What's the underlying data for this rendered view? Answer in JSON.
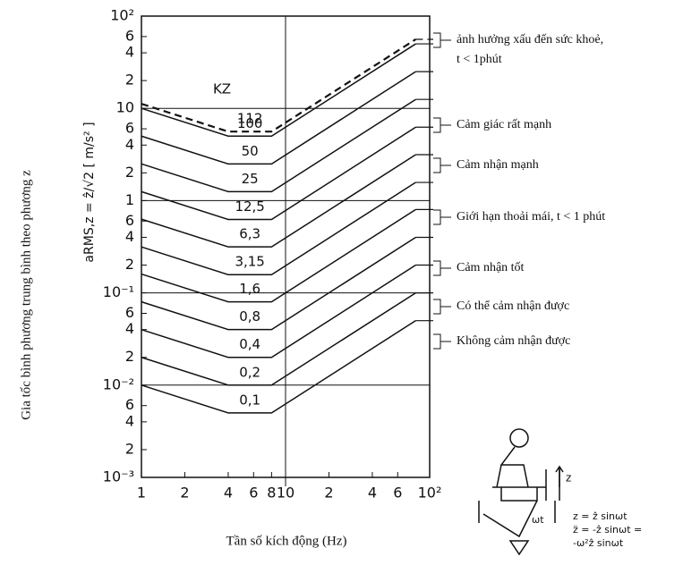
{
  "chart_data": {
    "type": "line",
    "log_x": true,
    "log_y": true,
    "y_title": "Gia tốc bình phương trung bình theo phương z",
    "y_label": "aRMS,z = ẑ/√2  [ m/s² ]",
    "x_label": "Tần số kích động (Hz)",
    "legend_title": "KZ",
    "xlim": [
      1,
      100
    ],
    "ylim": [
      0.001,
      100
    ],
    "xticks": [
      1,
      2,
      4,
      6,
      8,
      10,
      {
        "value": 20,
        "label": "2"
      },
      {
        "value": 40,
        "label": "4"
      },
      {
        "value": 60,
        "label": "6"
      },
      {
        "value": 100,
        "label": "10²"
      }
    ],
    "yticks": [
      {
        "value": 0.001,
        "label": "10⁻³"
      },
      {
        "value": 0.002,
        "label": "2"
      },
      {
        "value": 0.004,
        "label": "4"
      },
      {
        "value": 0.006,
        "label": "6"
      },
      {
        "value": 0.01,
        "label": "10⁻²"
      },
      {
        "value": 0.02,
        "label": "2"
      },
      {
        "value": 0.04,
        "label": "4"
      },
      {
        "value": 0.06,
        "label": "6"
      },
      {
        "value": 0.1,
        "label": "10⁻¹"
      },
      {
        "value": 0.2,
        "label": "2"
      },
      {
        "value": 0.4,
        "label": "4"
      },
      {
        "value": 0.6,
        "label": "6"
      },
      1,
      2,
      4,
      6,
      10,
      {
        "value": 20,
        "label": "2"
      },
      {
        "value": 40,
        "label": "4"
      },
      {
        "value": 60,
        "label": "6"
      },
      {
        "value": 100,
        "label": "10²"
      }
    ],
    "hgrid": [
      0.01,
      0.1,
      1,
      10
    ],
    "vgrid": [
      10
    ],
    "color": "#111111",
    "series": [
      {
        "name": "0,1",
        "x": [
          1,
          4,
          8,
          80
        ],
        "values": [
          0.01,
          0.005,
          0.005,
          0.05
        ]
      },
      {
        "name": "0,2",
        "x": [
          1,
          4,
          8,
          80
        ],
        "values": [
          0.02,
          0.01,
          0.01,
          0.1
        ]
      },
      {
        "name": "0,4",
        "x": [
          1,
          4,
          8,
          80
        ],
        "values": [
          0.04,
          0.02,
          0.02,
          0.2
        ]
      },
      {
        "name": "0,8",
        "x": [
          1,
          4,
          8,
          80
        ],
        "values": [
          0.08,
          0.04,
          0.04,
          0.4
        ]
      },
      {
        "name": "1,6",
        "x": [
          1,
          4,
          8,
          80
        ],
        "values": [
          0.16,
          0.08,
          0.08,
          0.8
        ]
      },
      {
        "name": "3,15",
        "x": [
          1,
          4,
          8,
          80
        ],
        "values": [
          0.315,
          0.1575,
          0.1575,
          1.575
        ]
      },
      {
        "name": "6,3",
        "x": [
          1,
          4,
          8,
          80
        ],
        "values": [
          0.63,
          0.315,
          0.315,
          3.15
        ]
      },
      {
        "name": "12,5",
        "x": [
          1,
          4,
          8,
          80
        ],
        "values": [
          1.25,
          0.625,
          0.625,
          6.25
        ]
      },
      {
        "name": "25",
        "x": [
          1,
          4,
          8,
          80
        ],
        "values": [
          2.5,
          1.25,
          1.25,
          12.5
        ]
      },
      {
        "name": "50",
        "x": [
          1,
          4,
          8,
          80
        ],
        "values": [
          5,
          2.5,
          2.5,
          25
        ]
      },
      {
        "name": "100",
        "x": [
          1,
          4,
          8,
          80
        ],
        "values": [
          10,
          5,
          5,
          50
        ]
      },
      {
        "name": "112",
        "x": [
          1,
          4,
          8,
          80
        ],
        "values": [
          11.2,
          5.6,
          5.6,
          56
        ],
        "dashed": true
      }
    ],
    "annotations": [
      [
        "ảnh hưởng xấu đến sức khoẻ,",
        "t < 1phút"
      ],
      [
        "Cảm giác rất mạnh"
      ],
      [
        "Cảm nhận mạnh"
      ],
      [
        "Giới hạn thoải mái, t < 1 phút"
      ],
      [
        "Cảm nhận tốt"
      ],
      [
        "Có thể cảm nhận được"
      ],
      [
        "Không cảm nhận được"
      ]
    ],
    "figure_labels": [
      "z",
      "z = ẑ  sinωt",
      "z̈ = -ẑ  sinωt =",
      "-ω²ẑ  sinωt",
      "ωt"
    ]
  }
}
